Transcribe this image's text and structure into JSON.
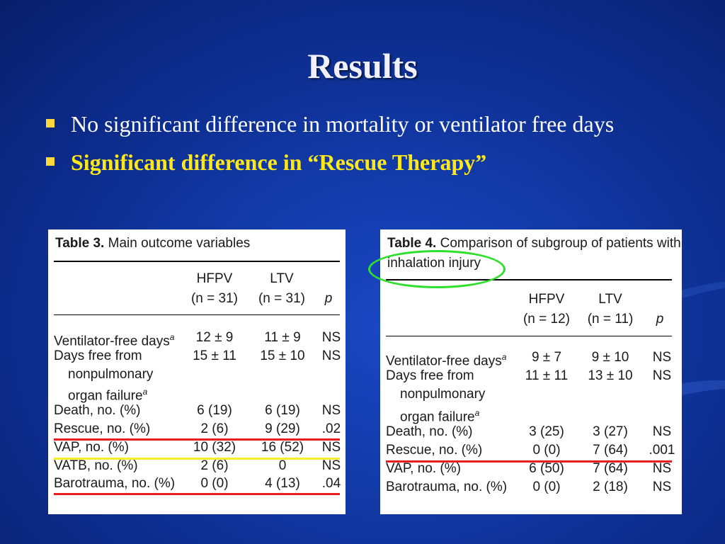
{
  "slide": {
    "title": "Results",
    "bullets": [
      "No significant difference in mortality or ventilator free days",
      "Significant difference in “Rescue Therapy”"
    ]
  },
  "table3": {
    "caption_bold": "Table 3.",
    "caption_text": "Main outcome variables",
    "col1": "HFPV",
    "col1_n": "(n = 31)",
    "col2": "LTV",
    "col2_n": "(n = 31)",
    "col3": "p",
    "rows": [
      {
        "label": "Ventilator-free days",
        "sup": "a",
        "a": "12 ± 9",
        "b": "11 ± 9",
        "p": "NS"
      },
      {
        "label": "Days free from",
        "a": "15 ± 11",
        "b": "15 ± 10",
        "p": "NS"
      },
      {
        "label": "nonpulmonary"
      },
      {
        "label": "organ failure",
        "sup": "a"
      },
      {
        "label": "Death, no. (%)",
        "a": "6 (19)",
        "b": "6 (19)",
        "p": "NS"
      },
      {
        "label": "Rescue, no. (%)",
        "a": "2 (6)",
        "b": "9 (29)",
        "p": ".02"
      },
      {
        "label": "VAP, no. (%)",
        "a": "10 (32)",
        "b": "16 (52)",
        "p": "NS"
      },
      {
        "label": "VATB, no. (%)",
        "a": "2 (6)",
        "b": "0",
        "p": "NS"
      },
      {
        "label": "Barotrauma, no. (%)",
        "a": "0 (0)",
        "b": "4 (13)",
        "p": ".04"
      }
    ]
  },
  "table4": {
    "caption_bold": "Table 4.",
    "caption_text": "Comparison of subgroup of patients with",
    "caption_line2": "inhalation injury",
    "col1": "HFPV",
    "col1_n": "(n = 12)",
    "col2": "LTV",
    "col2_n": "(n = 11)",
    "col3": "p",
    "rows": [
      {
        "label": "Ventilator-free days",
        "sup": "a",
        "a": "9 ± 7",
        "b": "9 ± 10",
        "p": "NS"
      },
      {
        "label": "Days free from",
        "a": "11 ± 11",
        "b": "13 ± 10",
        "p": "NS"
      },
      {
        "label": "nonpulmonary"
      },
      {
        "label": "organ failure",
        "sup": "a"
      },
      {
        "label": "Death, no. (%)",
        "a": "3 (25)",
        "b": "3 (27)",
        "p": "NS"
      },
      {
        "label": "Rescue, no. (%)",
        "a": "0 (0)",
        "b": "7 (64)",
        "p": ".001"
      },
      {
        "label": "VAP, no. (%)",
        "a": "6 (50)",
        "b": "7 (64)",
        "p": "NS"
      },
      {
        "label": "Barotrauma, no. (%)",
        "a": "0 (0)",
        "b": "2 (18)",
        "p": "NS"
      }
    ]
  },
  "colors": {
    "background": "#123aa8",
    "bullet_highlight": "#ffe81a",
    "underline_red": "#e81e1e",
    "underline_yellow": "#f5ee2a",
    "circle_green": "#2ee02e"
  }
}
